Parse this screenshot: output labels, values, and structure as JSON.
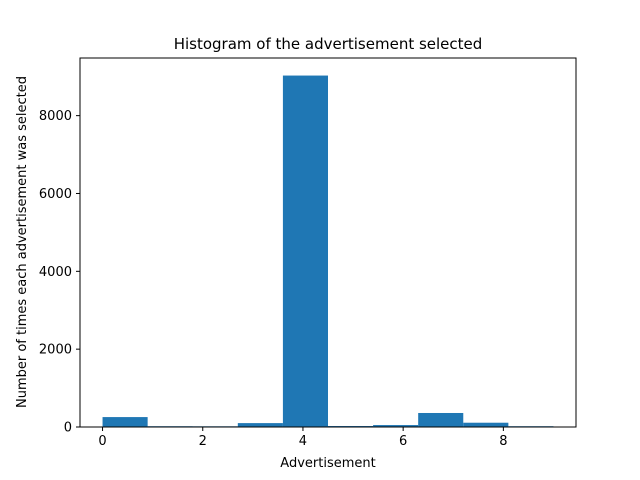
{
  "chart_data": {
    "type": "bar",
    "title": "Histogram of the advertisement selected",
    "xlabel": "Advertisement",
    "ylabel": "Number of times each advertisement was selected",
    "bin_edges": [
      0,
      0.9,
      1.8,
      2.7,
      3.6,
      4.5,
      5.4,
      6.3,
      7.2,
      8.1,
      9.0
    ],
    "values": [
      255,
      20,
      18,
      100,
      9030,
      25,
      50,
      360,
      110,
      20
    ],
    "xlim": [
      -0.45,
      9.45
    ],
    "ylim": [
      0,
      9481
    ],
    "xticks": [
      0,
      2,
      4,
      6,
      8
    ],
    "yticks": [
      0,
      2000,
      4000,
      6000,
      8000
    ],
    "grid": false,
    "bar_color": "#1f77b4"
  }
}
